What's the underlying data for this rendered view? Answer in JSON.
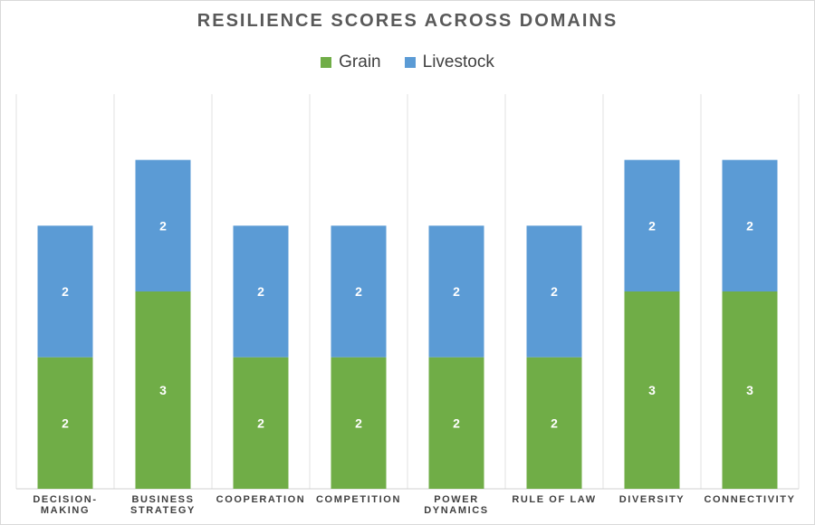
{
  "chart_data": {
    "type": "bar",
    "stacked": true,
    "title": "RESILIENCE SCORES ACROSS DOMAINS",
    "categories": [
      [
        "DECISION-",
        "MAKING"
      ],
      [
        "BUSINESS",
        "STRATEGY"
      ],
      [
        "COOPERATION"
      ],
      [
        "COMPETITION"
      ],
      [
        "POWER",
        "DYNAMICS"
      ],
      [
        "RULE OF LAW"
      ],
      [
        "DIVERSITY"
      ],
      [
        "CONNECTIVITY"
      ]
    ],
    "series": [
      {
        "name": "Grain",
        "color": "#70ad47",
        "values": [
          2,
          3,
          2,
          2,
          2,
          2,
          3,
          3
        ]
      },
      {
        "name": "Livestock",
        "color": "#5b9bd5",
        "values": [
          2,
          2,
          2,
          2,
          2,
          2,
          2,
          2
        ]
      }
    ],
    "xlabel": "",
    "ylabel": "",
    "ylim": [
      0,
      6
    ],
    "grid": "vertical",
    "legend_position": "top",
    "data_labels": true
  }
}
